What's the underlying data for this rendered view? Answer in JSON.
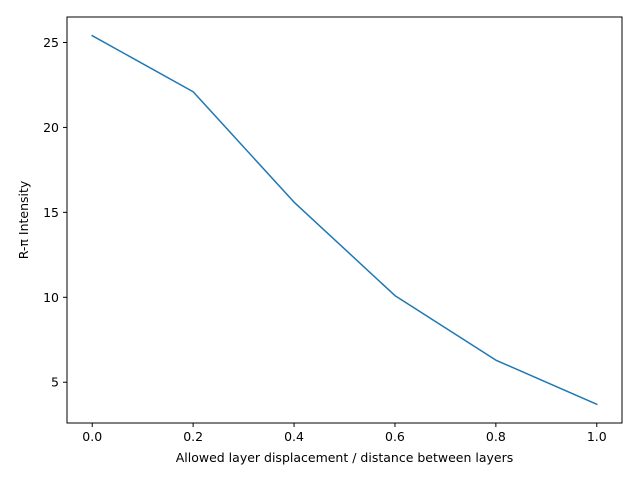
{
  "chart_data": {
    "type": "line",
    "title": "",
    "xlabel": "Allowed layer displacement / distance between layers",
    "ylabel": "R-π Intensity",
    "xlim": [
      -0.05,
      1.05
    ],
    "ylim": [
      2.6,
      26.5
    ],
    "xticks": [
      0.0,
      0.2,
      0.4,
      0.6,
      0.8,
      1.0
    ],
    "xtick_labels": [
      "0.0",
      "0.2",
      "0.4",
      "0.6",
      "0.8",
      "1.0"
    ],
    "yticks": [
      5,
      10,
      15,
      20,
      25
    ],
    "ytick_labels": [
      "5",
      "10",
      "15",
      "20",
      "25"
    ],
    "grid": false,
    "legend": "none",
    "series": [
      {
        "color": "#1f77b4",
        "x": [
          0.0,
          0.2,
          0.4,
          0.6,
          0.8,
          1.0
        ],
        "y": [
          25.4,
          22.1,
          15.6,
          10.1,
          6.3,
          3.7
        ]
      }
    ]
  }
}
